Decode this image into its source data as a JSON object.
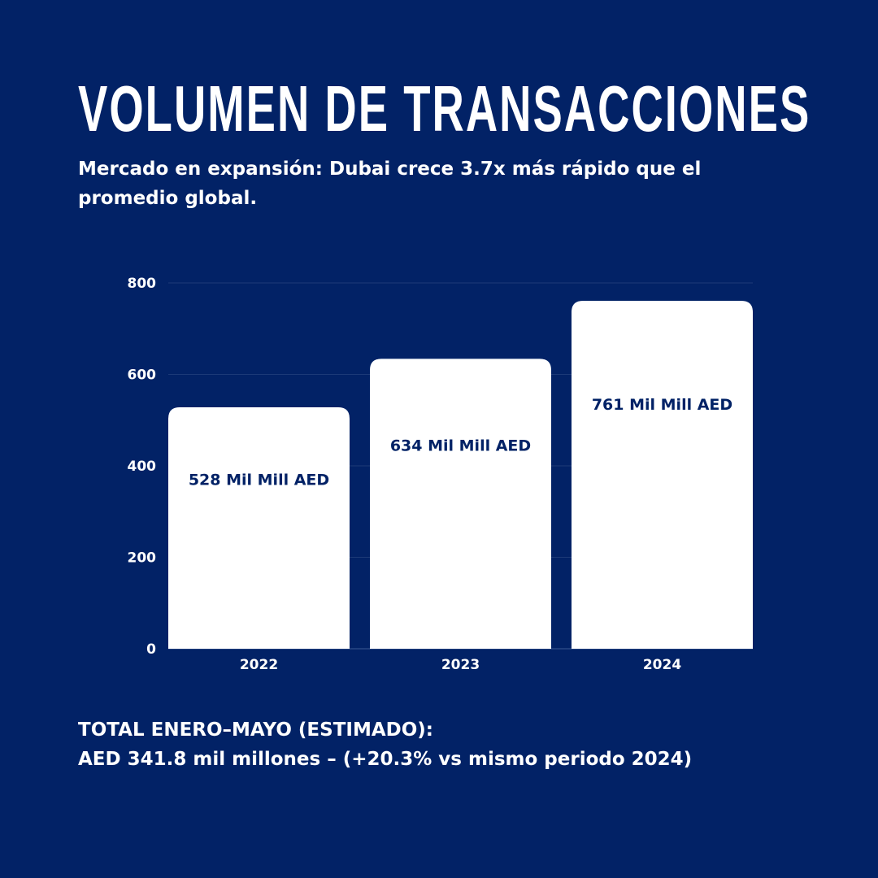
{
  "header": {
    "title": "VOLUMEN DE TRANSACCIONES",
    "subtitle": "Mercado en expansión: Dubai crece 3.7x más rápido que el promedio global."
  },
  "colors": {
    "background": "#022266",
    "bar": "#ffffff",
    "bar_label": "#022266",
    "text": "#ffffff"
  },
  "chart_data": {
    "type": "bar",
    "categories": [
      "2022",
      "2023",
      "2024"
    ],
    "values": [
      528,
      634,
      761
    ],
    "data_labels": [
      "528 Mil Mill AED",
      "634 Mil Mill AED",
      "761 Mil Mill AED"
    ],
    "yticks": [
      0,
      200,
      400,
      600,
      800
    ],
    "ylim": [
      0,
      800
    ],
    "grid": true
  },
  "footer": {
    "line1": "TOTAL ENERO–MAYO (ESTIMADO):",
    "line2": "AED 341.8 mil millones – (+20.3% vs mismo periodo 2024)"
  }
}
